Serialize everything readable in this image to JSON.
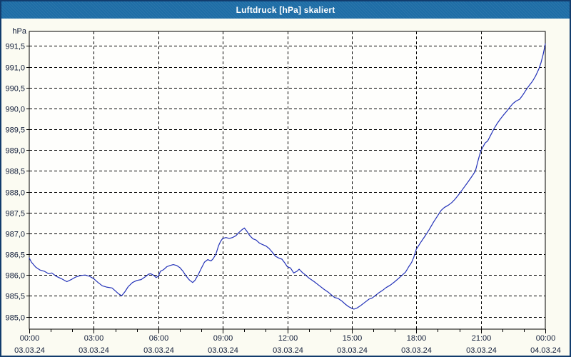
{
  "window": {
    "title": "Luftdruck [hPa] skaliert"
  },
  "colors": {
    "titlebar_bg": "#1e6da6",
    "titlebar_text": "#ffffff",
    "window_border": "#123c6d",
    "chart_bg": "#fbfbf2",
    "plot_bg": "#fefefc",
    "plot_border": "#000000",
    "grid": "#000000",
    "tick": "#000000",
    "label": "#101c38",
    "line": "#2231b8"
  },
  "axis": {
    "unit_label": "hPa",
    "y_ticks": [
      {
        "label": "985,0",
        "value": 985.0
      },
      {
        "label": "985,5",
        "value": 985.5
      },
      {
        "label": "986,0",
        "value": 986.0
      },
      {
        "label": "986,5",
        "value": 986.5
      },
      {
        "label": "987,0",
        "value": 987.0
      },
      {
        "label": "987,5",
        "value": 987.5
      },
      {
        "label": "988,0",
        "value": 988.0
      },
      {
        "label": "988,5",
        "value": 988.5
      },
      {
        "label": "989,0",
        "value": 989.0
      },
      {
        "label": "989,5",
        "value": 989.5
      },
      {
        "label": "990,0",
        "value": 990.0
      },
      {
        "label": "990,5",
        "value": 990.5
      },
      {
        "label": "991,0",
        "value": 991.0
      },
      {
        "label": "991,5",
        "value": 991.5
      }
    ],
    "x_ticks": [
      {
        "hour": 0,
        "time": "00:00",
        "date": "03.03.24"
      },
      {
        "hour": 3,
        "time": "03:00",
        "date": "03.03.24"
      },
      {
        "hour": 6,
        "time": "06:00",
        "date": "03.03.24"
      },
      {
        "hour": 9,
        "time": "09:00",
        "date": "03.03.24"
      },
      {
        "hour": 12,
        "time": "12:00",
        "date": "03.03.24"
      },
      {
        "hour": 15,
        "time": "15:00",
        "date": "03.03.24"
      },
      {
        "hour": 18,
        "time": "18:00",
        "date": "03.03.24"
      },
      {
        "hour": 21,
        "time": "21:00",
        "date": "03.03.24"
      },
      {
        "hour": 24,
        "time": "00:00",
        "date": "04.03.24"
      }
    ],
    "minor_tick_step_hours": 1
  },
  "chart_data": {
    "type": "line",
    "title": "Luftdruck [hPa] skaliert",
    "xlabel": "",
    "ylabel": "hPa",
    "xlim": [
      0,
      24
    ],
    "ylim": [
      984.7,
      991.85
    ],
    "grid": true,
    "legend": false,
    "series": [
      {
        "name": "Luftdruck",
        "points": [
          [
            0.0,
            986.41
          ],
          [
            0.1,
            986.31
          ],
          [
            0.3,
            986.19
          ],
          [
            0.5,
            986.12
          ],
          [
            0.7,
            986.09
          ],
          [
            0.9,
            986.03
          ],
          [
            1.05,
            986.05
          ],
          [
            1.25,
            985.97
          ],
          [
            1.5,
            985.91
          ],
          [
            1.75,
            985.84
          ],
          [
            1.95,
            985.89
          ],
          [
            2.15,
            985.95
          ],
          [
            2.4,
            985.99
          ],
          [
            2.6,
            986.0
          ],
          [
            2.8,
            985.97
          ],
          [
            3.0,
            985.91
          ],
          [
            3.2,
            985.82
          ],
          [
            3.4,
            985.74
          ],
          [
            3.6,
            985.71
          ],
          [
            3.85,
            985.69
          ],
          [
            4.0,
            985.62
          ],
          [
            4.15,
            985.55
          ],
          [
            4.3,
            985.5
          ],
          [
            4.45,
            985.6
          ],
          [
            4.6,
            985.72
          ],
          [
            4.8,
            985.82
          ],
          [
            5.0,
            985.87
          ],
          [
            5.2,
            985.89
          ],
          [
            5.4,
            985.96
          ],
          [
            5.55,
            986.02
          ],
          [
            5.65,
            986.03
          ],
          [
            5.8,
            985.99
          ],
          [
            5.9,
            985.94
          ],
          [
            6.0,
            985.97
          ],
          [
            6.1,
            986.09
          ],
          [
            6.25,
            986.13
          ],
          [
            6.4,
            986.2
          ],
          [
            6.55,
            986.23
          ],
          [
            6.7,
            986.25
          ],
          [
            6.85,
            986.23
          ],
          [
            7.0,
            986.18
          ],
          [
            7.15,
            986.09
          ],
          [
            7.3,
            985.97
          ],
          [
            7.45,
            985.88
          ],
          [
            7.6,
            985.82
          ],
          [
            7.7,
            985.87
          ],
          [
            7.85,
            986.0
          ],
          [
            8.0,
            986.16
          ],
          [
            8.15,
            986.31
          ],
          [
            8.3,
            986.37
          ],
          [
            8.45,
            986.34
          ],
          [
            8.55,
            986.39
          ],
          [
            8.68,
            986.5
          ],
          [
            8.8,
            986.7
          ],
          [
            8.9,
            986.81
          ],
          [
            9.0,
            986.88
          ],
          [
            9.15,
            986.9
          ],
          [
            9.3,
            986.88
          ],
          [
            9.45,
            986.9
          ],
          [
            9.6,
            986.94
          ],
          [
            9.75,
            987.02
          ],
          [
            9.9,
            987.09
          ],
          [
            10.0,
            987.13
          ],
          [
            10.12,
            987.05
          ],
          [
            10.25,
            986.95
          ],
          [
            10.4,
            986.87
          ],
          [
            10.55,
            986.84
          ],
          [
            10.7,
            986.77
          ],
          [
            10.85,
            986.73
          ],
          [
            11.0,
            986.7
          ],
          [
            11.15,
            986.64
          ],
          [
            11.3,
            986.55
          ],
          [
            11.45,
            986.45
          ],
          [
            11.6,
            986.41
          ],
          [
            11.75,
            986.38
          ],
          [
            11.9,
            986.28
          ],
          [
            12.0,
            986.2
          ],
          [
            12.15,
            986.17
          ],
          [
            12.3,
            986.05
          ],
          [
            12.45,
            986.09
          ],
          [
            12.55,
            986.14
          ],
          [
            12.7,
            986.06
          ],
          [
            12.85,
            986.0
          ],
          [
            13.0,
            985.93
          ],
          [
            13.25,
            985.84
          ],
          [
            13.5,
            985.74
          ],
          [
            13.7,
            985.66
          ],
          [
            13.9,
            985.59
          ],
          [
            14.1,
            985.5
          ],
          [
            14.2,
            985.46
          ],
          [
            14.35,
            985.44
          ],
          [
            14.55,
            985.37
          ],
          [
            14.7,
            985.3
          ],
          [
            14.85,
            985.24
          ],
          [
            15.0,
            985.2
          ],
          [
            15.1,
            985.18
          ],
          [
            15.25,
            985.21
          ],
          [
            15.4,
            985.26
          ],
          [
            15.6,
            985.34
          ],
          [
            15.8,
            985.42
          ],
          [
            15.95,
            985.45
          ],
          [
            16.1,
            985.51
          ],
          [
            16.25,
            985.57
          ],
          [
            16.45,
            985.64
          ],
          [
            16.6,
            985.7
          ],
          [
            16.8,
            985.76
          ],
          [
            17.0,
            985.84
          ],
          [
            17.2,
            985.93
          ],
          [
            17.35,
            986.0
          ],
          [
            17.5,
            986.07
          ],
          [
            17.65,
            986.2
          ],
          [
            17.78,
            986.3
          ],
          [
            17.88,
            986.42
          ],
          [
            18.0,
            986.62
          ],
          [
            18.2,
            986.78
          ],
          [
            18.4,
            986.93
          ],
          [
            18.6,
            987.09
          ],
          [
            18.8,
            987.27
          ],
          [
            19.0,
            987.43
          ],
          [
            19.15,
            987.55
          ],
          [
            19.3,
            987.62
          ],
          [
            19.5,
            987.68
          ],
          [
            19.65,
            987.74
          ],
          [
            19.8,
            987.82
          ],
          [
            20.0,
            987.95
          ],
          [
            20.2,
            988.09
          ],
          [
            20.4,
            988.23
          ],
          [
            20.6,
            988.38
          ],
          [
            20.75,
            988.5
          ],
          [
            20.9,
            988.8
          ],
          [
            21.0,
            988.98
          ],
          [
            21.2,
            989.17
          ],
          [
            21.32,
            989.22
          ],
          [
            21.45,
            989.35
          ],
          [
            21.6,
            989.5
          ],
          [
            21.75,
            989.63
          ],
          [
            21.9,
            989.74
          ],
          [
            22.05,
            989.84
          ],
          [
            22.2,
            989.93
          ],
          [
            22.35,
            990.03
          ],
          [
            22.5,
            990.12
          ],
          [
            22.65,
            990.18
          ],
          [
            22.8,
            990.22
          ],
          [
            22.95,
            990.32
          ],
          [
            23.1,
            990.44
          ],
          [
            23.25,
            990.55
          ],
          [
            23.4,
            990.65
          ],
          [
            23.55,
            990.78
          ],
          [
            23.7,
            990.95
          ],
          [
            23.8,
            991.1
          ],
          [
            23.9,
            991.3
          ],
          [
            24.0,
            991.55
          ]
        ]
      }
    ]
  }
}
